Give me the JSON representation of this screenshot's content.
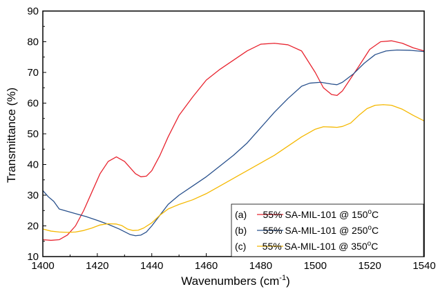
{
  "chart_data": {
    "type": "line",
    "xlabel_main": "Wavenumbers (cm",
    "xlabel_sup": "-1",
    "xlabel_end": ")",
    "ylabel": "Transmittance (%)",
    "xlim": [
      1400,
      1540
    ],
    "ylim": [
      10,
      90
    ],
    "xticks": [
      1400,
      1420,
      1440,
      1460,
      1480,
      1500,
      1520,
      1540
    ],
    "yticks": [
      10,
      20,
      30,
      40,
      50,
      60,
      70,
      80,
      90
    ],
    "legend_position": "bottom-right",
    "series": [
      {
        "name_main": "(a)      55% SA-MIL-101 @ 150",
        "name_sup": "o",
        "name_end": "C",
        "color": "#e8232e",
        "x": [
          1400,
          1403,
          1406,
          1409,
          1412,
          1415,
          1418,
          1421,
          1424,
          1427,
          1430,
          1432,
          1434,
          1436,
          1438,
          1440,
          1443,
          1446,
          1450,
          1455,
          1460,
          1465,
          1470,
          1475,
          1480,
          1485,
          1490,
          1495,
          1500,
          1503,
          1506,
          1508,
          1510,
          1513,
          1516,
          1520,
          1524,
          1528,
          1532,
          1536,
          1540
        ],
        "y": [
          15.5,
          15.3,
          15.5,
          17,
          20,
          25,
          31,
          37,
          41,
          42.5,
          41,
          39,
          37,
          36,
          36.2,
          38,
          43,
          49,
          56,
          62,
          67.5,
          71,
          74,
          77,
          79.2,
          79.5,
          79,
          77,
          70,
          65,
          62.8,
          62.5,
          64,
          68,
          72,
          77.5,
          80,
          80.3,
          79.5,
          78,
          77
        ]
      },
      {
        "name_main": "(b)      55% SA-MIL-101 @ 250",
        "name_sup": "o",
        "name_end": "C",
        "color": "#28508c",
        "x": [
          1400,
          1402,
          1404,
          1406,
          1408,
          1412,
          1416,
          1420,
          1424,
          1428,
          1432,
          1434,
          1436,
          1438,
          1440,
          1443,
          1446,
          1450,
          1455,
          1460,
          1465,
          1470,
          1475,
          1480,
          1485,
          1490,
          1495,
          1498,
          1502,
          1506,
          1508,
          1510,
          1514,
          1518,
          1522,
          1526,
          1530,
          1535,
          1540
        ],
        "y": [
          31.5,
          29.5,
          28,
          25.5,
          25,
          24,
          23,
          21.8,
          20.5,
          19,
          17.2,
          16.8,
          17,
          18,
          20,
          23.5,
          27,
          30,
          33,
          36,
          39.5,
          43,
          47,
          52,
          57,
          61.5,
          65.5,
          66.5,
          66.8,
          66.2,
          66,
          66.8,
          69.5,
          73,
          75.8,
          77,
          77.3,
          77.2,
          76.8
        ]
      },
      {
        "name_main": "(c)      55% SA-MIL-101 @ 350",
        "name_sup": "o",
        "name_end": "C",
        "color": "#f5b800",
        "x": [
          1400,
          1403,
          1406,
          1409,
          1412,
          1415,
          1418,
          1421,
          1424,
          1427,
          1429,
          1431,
          1433,
          1435,
          1437,
          1440,
          1443,
          1446,
          1450,
          1455,
          1460,
          1465,
          1470,
          1475,
          1480,
          1485,
          1490,
          1495,
          1500,
          1503,
          1506,
          1508,
          1510,
          1513,
          1516,
          1519,
          1522,
          1525,
          1528,
          1532,
          1536,
          1540
        ],
        "y": [
          19,
          18.3,
          18,
          17.9,
          18,
          18.5,
          19.3,
          20.3,
          20.7,
          20.6,
          20.1,
          19,
          18.5,
          18.6,
          19.3,
          21,
          23.5,
          25.5,
          27,
          28.5,
          30.5,
          33,
          35.5,
          38,
          40.5,
          43,
          46,
          49,
          51.5,
          52.3,
          52.2,
          52.1,
          52.4,
          53.5,
          56,
          58.2,
          59.3,
          59.5,
          59.3,
          58,
          56,
          54.2
        ]
      }
    ]
  }
}
